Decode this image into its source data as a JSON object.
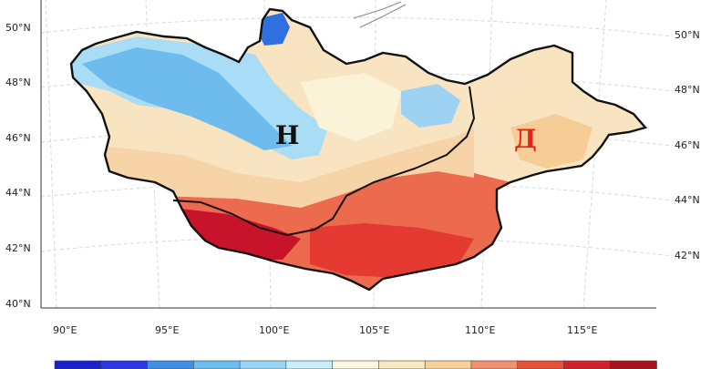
{
  "map": {
    "lat_labels_left": [
      "50°N",
      "48°N",
      "46°N",
      "44°N",
      "42°N",
      "40°N"
    ],
    "lat_labels_right": [
      "50°N",
      "48°N",
      "46°N",
      "44°N",
      "42°N"
    ],
    "lon_labels": [
      "90°E",
      "95°E",
      "100°E",
      "105°E",
      "110°E",
      "115°E"
    ],
    "region_labels": {
      "west": "Н",
      "east": "Д"
    },
    "colors": {
      "outline": "#111111",
      "boundary_line": "#111111",
      "grid": "#d8d8d8",
      "west_label": "#111111",
      "east_label": "#e8231a"
    },
    "colorbar": [
      "#1a1fd0",
      "#2c36e6",
      "#3f8fe8",
      "#6bbef0",
      "#99d6f6",
      "#c8eefb",
      "#fbf6dc",
      "#fae8bf",
      "#f6d09a",
      "#f09070",
      "#e8503a",
      "#d2202c",
      "#a8121f"
    ]
  }
}
